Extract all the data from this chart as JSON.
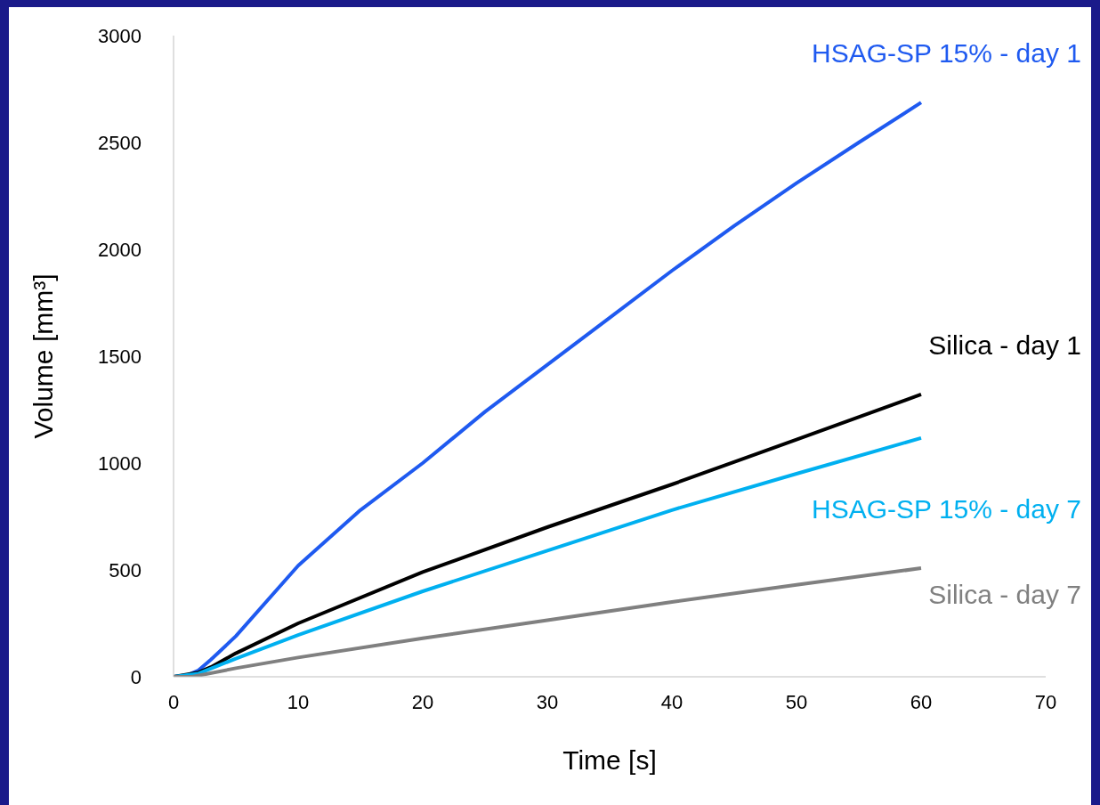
{
  "chart_data": {
    "type": "line",
    "xlabel": "Time [s]",
    "ylabel": "Volume [mm³]",
    "xlim": [
      0,
      70
    ],
    "xticks": [
      0,
      10,
      20,
      30,
      40,
      50,
      60,
      70
    ],
    "ylim": [
      0,
      3000
    ],
    "yticks": [
      0,
      500,
      1000,
      1500,
      2000,
      2500,
      3000
    ],
    "grid": false,
    "legend": false,
    "marker": "none",
    "line_style": "solid",
    "series": [
      {
        "name": "HSAG-SP 15% - day 1",
        "color": "#1f5af0",
        "x": [
          0,
          1,
          2,
          3,
          5,
          10,
          15,
          20,
          25,
          30,
          35,
          40,
          45,
          50,
          55,
          60
        ],
        "values": [
          0,
          5,
          30,
          80,
          190,
          520,
          780,
          1000,
          1240,
          1460,
          1680,
          1900,
          2110,
          2310,
          2500,
          2687
        ]
      },
      {
        "name": "Silica - day 1",
        "color": "#000000",
        "x": [
          0,
          2,
          3,
          5,
          10,
          20,
          30,
          40,
          50,
          60
        ],
        "values": [
          0,
          20,
          45,
          110,
          250,
          490,
          700,
          900,
          1110,
          1321
        ]
      },
      {
        "name": "HSAG-SP 15% - day 7",
        "color": "#00b0f0",
        "x": [
          0,
          2,
          5,
          10,
          20,
          30,
          40,
          50,
          60
        ],
        "values": [
          0,
          15,
          85,
          195,
          400,
          590,
          780,
          950,
          1117
        ]
      },
      {
        "name": "Silica - day  7",
        "color": "#808080",
        "x": [
          0,
          1.5,
          5,
          10,
          20,
          30,
          40,
          50,
          60
        ],
        "values": [
          0,
          0,
          40,
          90,
          180,
          265,
          350,
          430,
          508
        ]
      }
    ]
  }
}
